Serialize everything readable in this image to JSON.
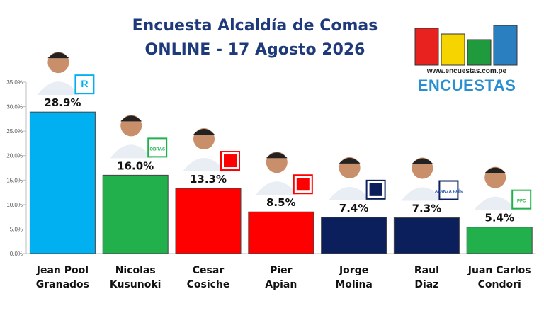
{
  "header": {
    "title": "Encuesta Alcaldía de Comas",
    "subtitle": "ONLINE - 17 Agosto 2026"
  },
  "logo": {
    "url": "www.encuestas.com.pe",
    "word": "ENCUESTAS",
    "bar_colors": [
      "#e8231f",
      "#f5d400",
      "#1f9a3d",
      "#2a7fc1"
    ]
  },
  "chart_data": {
    "type": "bar",
    "categories": [
      [
        "Jean Pool",
        "Granados"
      ],
      [
        "Nicolas",
        "Kusunoki"
      ],
      [
        "Cesar",
        "Cosiche"
      ],
      [
        "Pier",
        "Apian"
      ],
      [
        "Jorge",
        "Molina"
      ],
      [
        "Raul",
        "Diaz"
      ],
      [
        "Juan Carlos",
        "Condori"
      ]
    ],
    "values": [
      28.9,
      16.0,
      13.3,
      8.5,
      7.4,
      7.3,
      5.4
    ],
    "data_labels": [
      "28.9%",
      "16.0%",
      "13.3%",
      "8.5%",
      "7.4%",
      "7.3%",
      "5.4%"
    ],
    "colors": [
      "#00b0f0",
      "#22b04c",
      "#ff0000",
      "#ff0000",
      "#0a1f5c",
      "#0a1f5c",
      "#22b04c"
    ],
    "party_badges": [
      "R",
      "OBRAS",
      "",
      "",
      "",
      "AVANZA PAÍS",
      "PPC"
    ],
    "ylim": [
      0,
      35
    ],
    "yticks": [
      "0.0%",
      "5.0%",
      "10.0%",
      "15.0%",
      "20.0%",
      "25.0%",
      "30.0%",
      "35.0%"
    ],
    "grid": false
  }
}
